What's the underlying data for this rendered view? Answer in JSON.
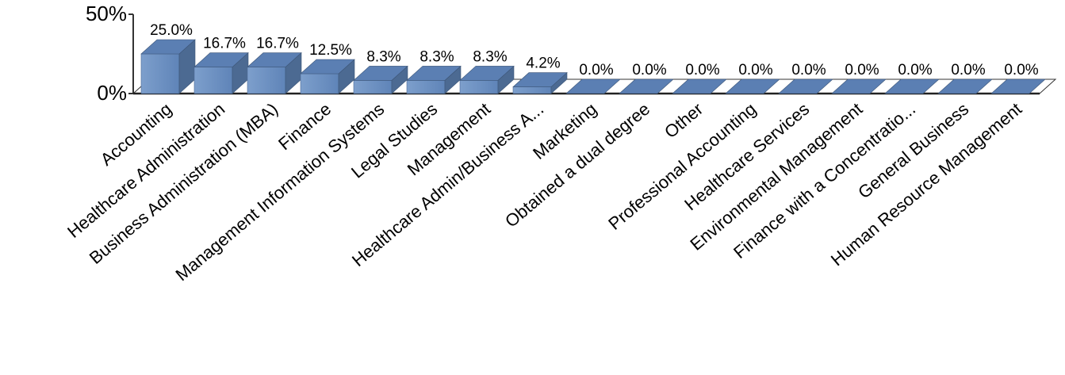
{
  "chart_data": {
    "type": "bar3d",
    "categories": [
      "Accounting",
      "Healthcare Administration",
      "Business Administration (MBA)",
      "Finance",
      "Management Information Systems",
      "Legal Studies",
      "Management",
      "Healthcare Admin/Business A...",
      "Marketing",
      "Obtained a dual degree",
      "Other",
      "Professional Accounting",
      "Healthcare Services",
      "Environmental Management",
      "Finance with a Concentratio...",
      "General Business",
      "Human Resource Management"
    ],
    "values": [
      25.0,
      16.7,
      16.7,
      12.5,
      8.3,
      8.3,
      8.3,
      4.2,
      0,
      0,
      0,
      0,
      0,
      0,
      0,
      0,
      0
    ],
    "value_labels": [
      "25.0%",
      "16.7%",
      "16.7%",
      "12.5%",
      "8.3%",
      "8.3%",
      "8.3%",
      "4.2%",
      "0.0%",
      "0.0%",
      "0.0%",
      "0.0%",
      "0.0%",
      "0.0%",
      "0.0%",
      "0.0%",
      "0.0%"
    ],
    "color": "#6a8fc2",
    "ylim": [
      0,
      50
    ],
    "yticks": [
      {
        "value": 0,
        "label": "0%"
      },
      {
        "value": 50,
        "label": "50%"
      }
    ]
  }
}
